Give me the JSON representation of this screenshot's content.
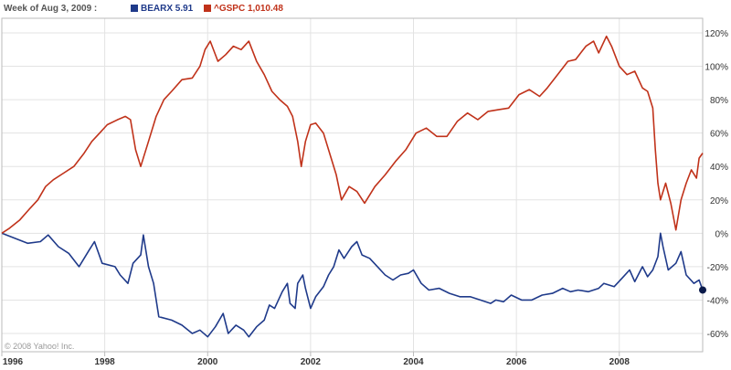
{
  "header": {
    "week_label": "Week of Aug 3, 2009 :",
    "copyright": "© 2008 Yahoo! Inc."
  },
  "colors": {
    "bearx": "#1f3a8a",
    "gspc": "#c0321a",
    "grid": "#e3e3e3",
    "axis": "#bbbbbb"
  },
  "chart_data": {
    "type": "line",
    "x_unit": "year",
    "xlim": [
      1996.0,
      2009.62
    ],
    "ylim": [
      -65,
      130
    ],
    "y_ticks": [
      -60,
      -40,
      -20,
      0,
      20,
      40,
      60,
      80,
      100,
      120
    ],
    "y_tick_labels": [
      "-60%",
      "-40%",
      "-20%",
      "0%",
      "20%",
      "40%",
      "60%",
      "80%",
      "100%",
      "120%"
    ],
    "x_ticks": [
      1996,
      1998,
      2000,
      2002,
      2004,
      2006,
      2008
    ],
    "x_tick_labels": [
      "1996",
      "1998",
      "2000",
      "2002",
      "2004",
      "2006",
      "2008"
    ],
    "grid": true,
    "legend_position": "top-left",
    "series": [
      {
        "name": "BEARX",
        "legend_value": "5.91",
        "legend_label": "BEARX 5.91",
        "color": "#1f3a8a",
        "points": [
          [
            1996.0,
            0
          ],
          [
            1996.25,
            -3
          ],
          [
            1996.5,
            -6
          ],
          [
            1996.75,
            -5
          ],
          [
            1996.9,
            -1
          ],
          [
            1997.1,
            -8
          ],
          [
            1997.3,
            -12
          ],
          [
            1997.5,
            -20
          ],
          [
            1997.7,
            -10
          ],
          [
            1997.8,
            -5
          ],
          [
            1997.95,
            -18
          ],
          [
            1998.2,
            -20
          ],
          [
            1998.3,
            -25
          ],
          [
            1998.45,
            -30
          ],
          [
            1998.55,
            -18
          ],
          [
            1998.7,
            -13
          ],
          [
            1998.75,
            -1
          ],
          [
            1998.85,
            -20
          ],
          [
            1998.95,
            -30
          ],
          [
            1999.05,
            -50
          ],
          [
            1999.3,
            -52
          ],
          [
            1999.5,
            -55
          ],
          [
            1999.7,
            -60
          ],
          [
            1999.85,
            -58
          ],
          [
            2000.0,
            -62
          ],
          [
            2000.15,
            -56
          ],
          [
            2000.3,
            -48
          ],
          [
            2000.4,
            -60
          ],
          [
            2000.55,
            -55
          ],
          [
            2000.7,
            -58
          ],
          [
            2000.8,
            -62
          ],
          [
            2000.95,
            -56
          ],
          [
            2001.1,
            -52
          ],
          [
            2001.2,
            -43
          ],
          [
            2001.3,
            -45
          ],
          [
            2001.45,
            -35
          ],
          [
            2001.55,
            -30
          ],
          [
            2001.6,
            -42
          ],
          [
            2001.7,
            -45
          ],
          [
            2001.75,
            -30
          ],
          [
            2001.85,
            -25
          ],
          [
            2001.9,
            -33
          ],
          [
            2002.0,
            -45
          ],
          [
            2002.1,
            -38
          ],
          [
            2002.25,
            -32
          ],
          [
            2002.35,
            -25
          ],
          [
            2002.45,
            -20
          ],
          [
            2002.55,
            -10
          ],
          [
            2002.65,
            -15
          ],
          [
            2002.8,
            -8
          ],
          [
            2002.9,
            -5
          ],
          [
            2003.0,
            -13
          ],
          [
            2003.15,
            -15
          ],
          [
            2003.3,
            -20
          ],
          [
            2003.45,
            -25
          ],
          [
            2003.6,
            -28
          ],
          [
            2003.75,
            -25
          ],
          [
            2003.9,
            -24
          ],
          [
            2004.0,
            -22
          ],
          [
            2004.15,
            -30
          ],
          [
            2004.3,
            -34
          ],
          [
            2004.5,
            -33
          ],
          [
            2004.7,
            -36
          ],
          [
            2004.9,
            -38
          ],
          [
            2005.1,
            -38
          ],
          [
            2005.3,
            -40
          ],
          [
            2005.5,
            -42
          ],
          [
            2005.6,
            -40
          ],
          [
            2005.75,
            -41
          ],
          [
            2005.9,
            -37
          ],
          [
            2006.1,
            -40
          ],
          [
            2006.3,
            -40
          ],
          [
            2006.5,
            -37
          ],
          [
            2006.7,
            -36
          ],
          [
            2006.9,
            -33
          ],
          [
            2007.05,
            -35
          ],
          [
            2007.2,
            -34
          ],
          [
            2007.4,
            -35
          ],
          [
            2007.6,
            -33
          ],
          [
            2007.7,
            -30
          ],
          [
            2007.9,
            -32
          ],
          [
            2008.05,
            -27
          ],
          [
            2008.2,
            -22
          ],
          [
            2008.3,
            -29
          ],
          [
            2008.45,
            -20
          ],
          [
            2008.55,
            -26
          ],
          [
            2008.65,
            -22
          ],
          [
            2008.75,
            -14
          ],
          [
            2008.8,
            0
          ],
          [
            2008.85,
            -8
          ],
          [
            2008.95,
            -22
          ],
          [
            2009.1,
            -18
          ],
          [
            2009.2,
            -11
          ],
          [
            2009.3,
            -25
          ],
          [
            2009.45,
            -30
          ],
          [
            2009.55,
            -28
          ],
          [
            2009.62,
            -34
          ]
        ]
      },
      {
        "name": "^GSPC",
        "legend_value": "1,010.48",
        "legend_label": "^GSPC 1,010.48",
        "color": "#c0321a",
        "points": [
          [
            1996.0,
            0
          ],
          [
            1996.15,
            3
          ],
          [
            1996.35,
            8
          ],
          [
            1996.55,
            15
          ],
          [
            1996.7,
            20
          ],
          [
            1996.85,
            28
          ],
          [
            1997.0,
            32
          ],
          [
            1997.2,
            36
          ],
          [
            1997.4,
            40
          ],
          [
            1997.6,
            48
          ],
          [
            1997.75,
            55
          ],
          [
            1997.9,
            60
          ],
          [
            1998.05,
            65
          ],
          [
            1998.25,
            68
          ],
          [
            1998.4,
            70
          ],
          [
            1998.5,
            68
          ],
          [
            1998.6,
            50
          ],
          [
            1998.7,
            40
          ],
          [
            1998.85,
            55
          ],
          [
            1999.0,
            70
          ],
          [
            1999.15,
            80
          ],
          [
            1999.3,
            85
          ],
          [
            1999.5,
            92
          ],
          [
            1999.7,
            93
          ],
          [
            1999.85,
            100
          ],
          [
            1999.95,
            110
          ],
          [
            2000.05,
            115
          ],
          [
            2000.2,
            103
          ],
          [
            2000.35,
            107
          ],
          [
            2000.5,
            112
          ],
          [
            2000.65,
            110
          ],
          [
            2000.8,
            115
          ],
          [
            2000.95,
            103
          ],
          [
            2001.1,
            95
          ],
          [
            2001.25,
            85
          ],
          [
            2001.4,
            80
          ],
          [
            2001.55,
            76
          ],
          [
            2001.65,
            70
          ],
          [
            2001.75,
            55
          ],
          [
            2001.82,
            40
          ],
          [
            2001.9,
            55
          ],
          [
            2002.0,
            65
          ],
          [
            2002.1,
            66
          ],
          [
            2002.25,
            60
          ],
          [
            2002.4,
            45
          ],
          [
            2002.5,
            35
          ],
          [
            2002.6,
            20
          ],
          [
            2002.75,
            28
          ],
          [
            2002.9,
            25
          ],
          [
            2003.05,
            18
          ],
          [
            2003.25,
            28
          ],
          [
            2003.45,
            35
          ],
          [
            2003.65,
            43
          ],
          [
            2003.85,
            50
          ],
          [
            2004.05,
            60
          ],
          [
            2004.25,
            63
          ],
          [
            2004.45,
            58
          ],
          [
            2004.65,
            58
          ],
          [
            2004.85,
            67
          ],
          [
            2005.05,
            72
          ],
          [
            2005.25,
            68
          ],
          [
            2005.45,
            73
          ],
          [
            2005.65,
            74
          ],
          [
            2005.85,
            75
          ],
          [
            2006.05,
            83
          ],
          [
            2006.25,
            86
          ],
          [
            2006.45,
            82
          ],
          [
            2006.6,
            87
          ],
          [
            2006.8,
            95
          ],
          [
            2007.0,
            103
          ],
          [
            2007.15,
            104
          ],
          [
            2007.35,
            112
          ],
          [
            2007.5,
            115
          ],
          [
            2007.6,
            108
          ],
          [
            2007.75,
            118
          ],
          [
            2007.85,
            112
          ],
          [
            2008.0,
            100
          ],
          [
            2008.15,
            95
          ],
          [
            2008.3,
            97
          ],
          [
            2008.45,
            87
          ],
          [
            2008.55,
            85
          ],
          [
            2008.65,
            75
          ],
          [
            2008.7,
            50
          ],
          [
            2008.75,
            30
          ],
          [
            2008.8,
            20
          ],
          [
            2008.9,
            30
          ],
          [
            2009.0,
            18
          ],
          [
            2009.1,
            2
          ],
          [
            2009.2,
            20
          ],
          [
            2009.3,
            30
          ],
          [
            2009.4,
            38
          ],
          [
            2009.5,
            33
          ],
          [
            2009.55,
            45
          ],
          [
            2009.62,
            48
          ]
        ]
      }
    ]
  }
}
